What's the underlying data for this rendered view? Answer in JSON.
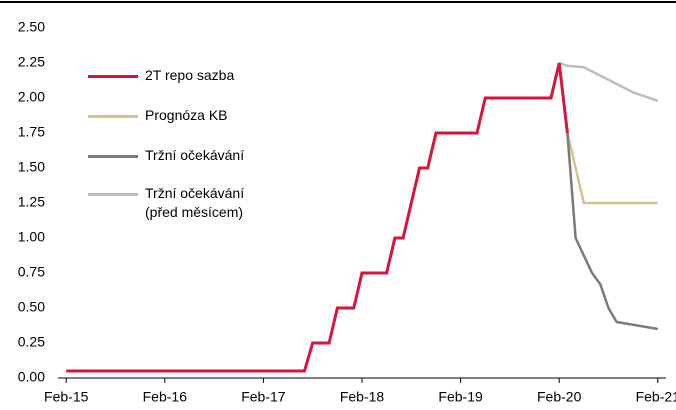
{
  "chart_data": {
    "type": "line",
    "xlim": [
      "2015-01",
      "2021-03"
    ],
    "xticks": [
      {
        "value": "2015-02",
        "label": "Feb-15"
      },
      {
        "value": "2016-02",
        "label": "Feb-16"
      },
      {
        "value": "2017-02",
        "label": "Feb-17"
      },
      {
        "value": "2018-02",
        "label": "Feb-18"
      },
      {
        "value": "2019-02",
        "label": "Feb-19"
      },
      {
        "value": "2020-02",
        "label": "Feb-20"
      },
      {
        "value": "2021-02",
        "label": "Feb-21"
      }
    ],
    "ylim": [
      0,
      2.5
    ],
    "yticks": [
      {
        "value": 0,
        "label": "0.00"
      },
      {
        "value": 0.25,
        "label": "0.25"
      },
      {
        "value": 0.5,
        "label": "0.50"
      },
      {
        "value": 0.75,
        "label": "0.75"
      },
      {
        "value": 1,
        "label": "1.00"
      },
      {
        "value": 1.25,
        "label": "1.25"
      },
      {
        "value": 1.5,
        "label": "1.50"
      },
      {
        "value": 1.75,
        "label": "1.75"
      },
      {
        "value": 2,
        "label": "2.00"
      },
      {
        "value": 2.25,
        "label": "2.25"
      },
      {
        "value": 2.5,
        "label": "2.50"
      }
    ],
    "grid": false,
    "series": [
      {
        "name": "2T repo sazba",
        "color": "#d9143a",
        "x": [
          "2015-02",
          "2017-07",
          "2017-08",
          "2017-10",
          "2017-11",
          "2018-01",
          "2018-02",
          "2018-05",
          "2018-06",
          "2018-07",
          "2018-08",
          "2018-09",
          "2018-10",
          "2018-11",
          "2019-04",
          "2019-05",
          "2020-01",
          "2020-02",
          "2020-03"
        ],
        "values": [
          0.05,
          0.05,
          0.25,
          0.25,
          0.5,
          0.5,
          0.75,
          0.75,
          1,
          1,
          1.25,
          1.5,
          1.5,
          1.75,
          1.75,
          2,
          2,
          2.25,
          1.75
        ]
      },
      {
        "name": "Prognóza KB",
        "color": "#d9c08a",
        "x": [
          "2020-03",
          "2020-05",
          "2021-02"
        ],
        "values": [
          1.75,
          1.25,
          1.25
        ]
      },
      {
        "name": "Tržní očekávání",
        "color": "#7a7a7a",
        "x": [
          "2020-03",
          "2020-04",
          "2020-06",
          "2020-07",
          "2020-08",
          "2020-09",
          "2020-12",
          "2021-02"
        ],
        "values": [
          1.75,
          1,
          0.75,
          0.67,
          0.5,
          0.4,
          0.37,
          0.35
        ]
      },
      {
        "name": "Tržní očekávání (před měsícem)",
        "color": "#bdbdbd",
        "x": [
          "2020-02",
          "2020-03",
          "2020-05",
          "2020-07",
          "2020-09",
          "2020-11",
          "2021-02"
        ],
        "values": [
          2.25,
          2.23,
          2.22,
          2.16,
          2.1,
          2.04,
          1.98
        ]
      }
    ]
  }
}
